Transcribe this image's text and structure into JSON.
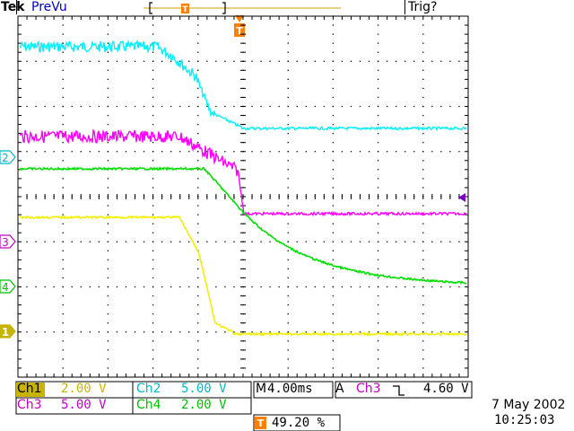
{
  "header": {
    "brand": "Tek",
    "status": "PreVu",
    "trigger_status": "Trig?"
  },
  "channels": [
    {
      "label": "Ch1",
      "scale": "2.00 V",
      "color": "#c8b400",
      "marker": "1"
    },
    {
      "label": "Ch2",
      "scale": "5.00 V",
      "color": "#00b8c8",
      "marker": "2"
    },
    {
      "label": "Ch3",
      "scale": "5.00 V",
      "color": "#c000c0",
      "marker": "3"
    },
    {
      "label": "Ch4",
      "scale": "2.00 V",
      "color": "#00c000",
      "marker": "4"
    }
  ],
  "timebase": {
    "prefix": "M",
    "value": "4.00ms"
  },
  "trigger": {
    "mode": "A",
    "source": "Ch3",
    "slope_icon": "falling-edge-icon",
    "level": "4.60 V"
  },
  "trigger_position": {
    "marker": "T",
    "value": "49.20 %"
  },
  "datetime": {
    "date": "7 May 2002",
    "time": "10:25:03"
  },
  "colors": {
    "ch1": "#ffff00",
    "ch2": "#00ffff",
    "ch3": "#ff00ff",
    "ch4": "#00ff00",
    "trigger": "#ff8000",
    "grid": "#000000"
  }
}
